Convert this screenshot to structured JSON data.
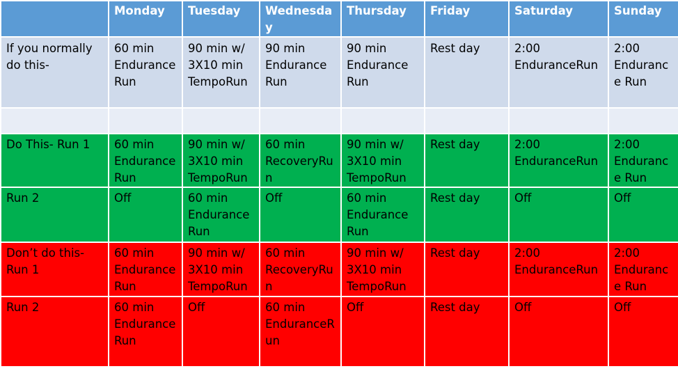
{
  "days": [
    "Monday",
    "Tuesday",
    "Wednesday",
    "Thursday",
    "Friday",
    "Saturday",
    "Sunday"
  ],
  "rows": [
    {
      "label": "If you normally do this-",
      "cells": [
        "60 min Endurance Run",
        "90 min w/ 3X10 min TempoRun",
        "90 min Endurance Run",
        "90 min Endurance Run",
        "Rest day",
        "2:00 EnduranceRun",
        "2:00 Endurance Run"
      ]
    },
    {
      "label": "",
      "cells": [
        "",
        "",
        "",
        "",
        "",
        "",
        ""
      ]
    },
    {
      "label": "Do This- Run 1",
      "cells": [
        "60 min Endurance Run",
        "90 min w/ 3X10 min TempoRun",
        "60 min RecoveryRun",
        "90 min w/ 3X10 min TempoRun",
        "Rest day",
        "2:00 EnduranceRun",
        "2:00 Endurance Run"
      ]
    },
    {
      "label": "Run 2",
      "cells": [
        "Off",
        "60 min Endurance Run",
        "Off",
        "60 min Endurance Run",
        "Rest day",
        "Off",
        "Off"
      ]
    },
    {
      "label": "Don’t do this- Run 1",
      "cells": [
        "60 min Endurance Run",
        "90 min w/ 3X10 min TempoRun",
        "60 min RecoveryRun",
        "90 min w/ 3X10 min TempoRun",
        "Rest day",
        "2:00 EnduranceRun",
        "2:00 Endurance Run"
      ]
    },
    {
      "label": "Run 2",
      "cells": [
        "60 min Endurance Run",
        "Off",
        "60 min EnduranceRun",
        "Off",
        "Rest day",
        "Off",
        "Off"
      ]
    }
  ],
  "colors": {
    "header": "#5b9bd5",
    "normal": "#cfdaeb",
    "spacer": "#e8edf6",
    "do": "#00b050",
    "dont": "#ff0000"
  }
}
